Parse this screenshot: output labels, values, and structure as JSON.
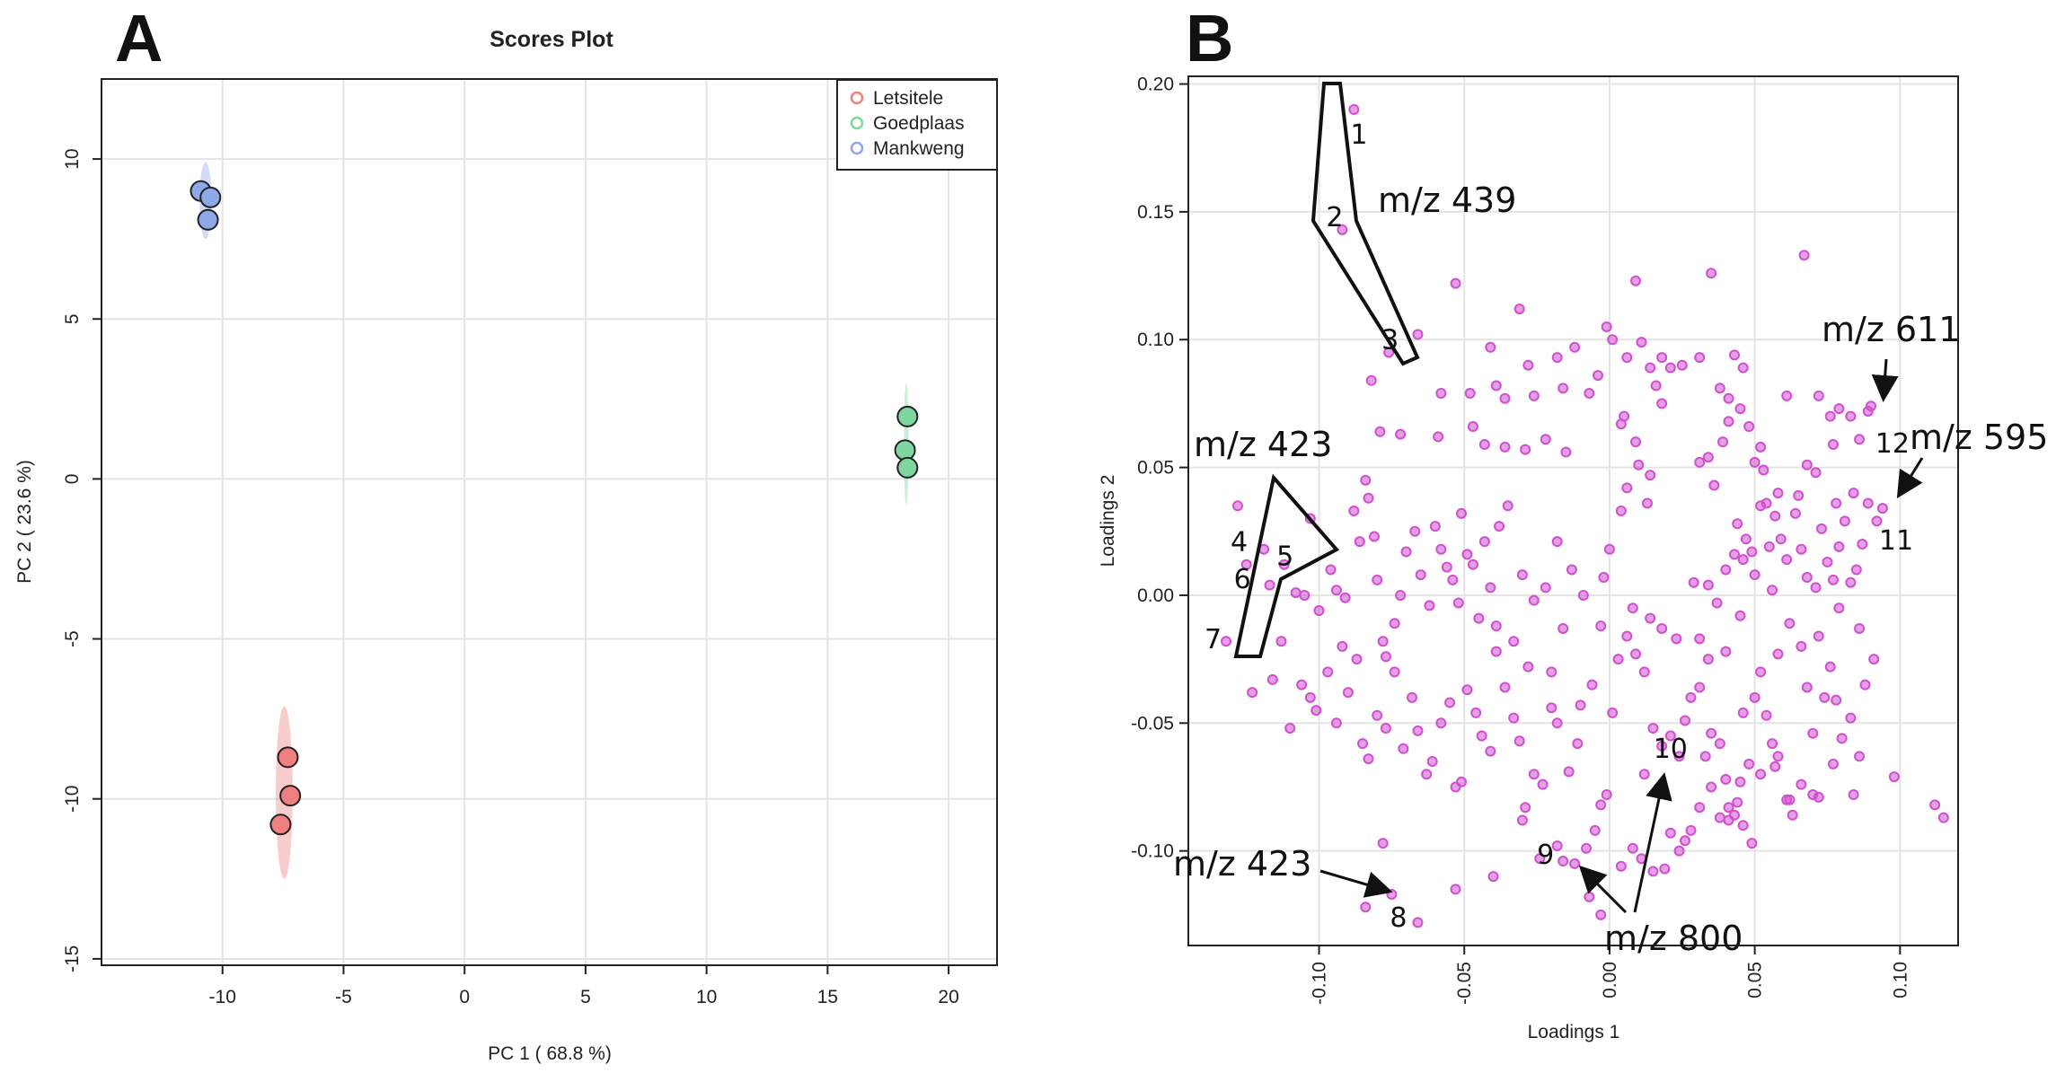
{
  "panel_letters": {
    "a": "A",
    "b": "B"
  },
  "chart_data": [
    {
      "type": "scatter",
      "title": "Scores Plot",
      "xlabel": "PC 1 ( 68.8 %)",
      "ylabel": "PC 2 ( 23.6 %)",
      "xlim": [
        -15,
        22
      ],
      "ylim": [
        -15.2,
        12.5
      ],
      "xticks": [
        -10,
        -5,
        0,
        5,
        10,
        15,
        20
      ],
      "yticks": [
        -15,
        -10,
        -5,
        0,
        5,
        10
      ],
      "grid": true,
      "legend_position": "top-right",
      "series": [
        {
          "name": "Letsitele",
          "color": "#f08080",
          "x": [
            -7.3,
            -7.2,
            -7.6
          ],
          "y": [
            -8.7,
            -9.9,
            -10.8
          ],
          "ellipse": {
            "cx": -7.45,
            "cy": -9.8,
            "rx": 0.35,
            "ry": 2.7
          }
        },
        {
          "name": "Goedplaas",
          "color": "#7fd6a0",
          "x": [
            18.3,
            18.2,
            18.3
          ],
          "y": [
            1.95,
            0.9,
            0.35
          ],
          "ellipse": {
            "cx": 18.25,
            "cy": 1.1,
            "rx": 0.1,
            "ry": 1.9
          }
        },
        {
          "name": "Mankweng",
          "color": "#8fa8e8",
          "x": [
            -10.9,
            -10.5,
            -10.6
          ],
          "y": [
            9.0,
            8.8,
            8.1
          ],
          "ellipse": {
            "cx": -10.7,
            "cy": 8.7,
            "rx": 0.25,
            "ry": 1.2
          }
        }
      ]
    },
    {
      "type": "scatter",
      "xlabel": "Loadings 1",
      "ylabel": "Loadings 2",
      "xlim": [
        -0.145,
        0.12
      ],
      "ylim": [
        -0.137,
        0.203
      ],
      "xticks": [
        -0.1,
        -0.05,
        0.0,
        0.05,
        0.1
      ],
      "xtick_labels": [
        "-0.10",
        "-0.05",
        "0.00",
        "0.05",
        "0.10"
      ],
      "yticks": [
        -0.1,
        -0.05,
        0.0,
        0.05,
        0.1,
        0.15,
        0.2
      ],
      "ytick_labels": [
        "-0.10",
        "-0.05",
        "0.00",
        "0.05",
        "0.10",
        "0.15",
        "0.20"
      ],
      "grid": true,
      "point_color": "#d050d0",
      "labeled_points": [
        {
          "label": "1",
          "x": -0.088,
          "y": 0.19
        },
        {
          "label": "2",
          "x": -0.092,
          "y": 0.143
        },
        {
          "label": "3",
          "x": -0.076,
          "y": 0.095
        },
        {
          "label": "4",
          "x": -0.128,
          "y": 0.035
        },
        {
          "label": "5",
          "x": -0.119,
          "y": 0.018
        },
        {
          "label": "6",
          "x": -0.125,
          "y": 0.012
        },
        {
          "label": "7",
          "x": -0.132,
          "y": -0.018
        },
        {
          "label": "8",
          "x": -0.075,
          "y": -0.117
        },
        {
          "label": "9",
          "x": -0.012,
          "y": -0.105
        },
        {
          "label": "10",
          "x": 0.012,
          "y": -0.07
        },
        {
          "label": "11",
          "x": 0.094,
          "y": 0.034
        },
        {
          "label": "12",
          "x": 0.089,
          "y": 0.072
        }
      ],
      "annotations": [
        {
          "text": "m/z 439"
        },
        {
          "text": "m/z 423"
        },
        {
          "text": "m/z 611"
        },
        {
          "text": "m/z 595"
        },
        {
          "text": "m/z 423"
        },
        {
          "text": "m/z 800"
        }
      ],
      "points": [
        [
          -0.082,
          0.084
        ],
        [
          -0.079,
          0.064
        ],
        [
          -0.072,
          0.063
        ],
        [
          -0.066,
          0.102
        ],
        [
          -0.053,
          0.122
        ],
        [
          -0.048,
          0.079
        ],
        [
          -0.041,
          0.097
        ],
        [
          -0.039,
          0.082
        ],
        [
          -0.036,
          0.077
        ],
        [
          -0.031,
          0.112
        ],
        [
          -0.028,
          0.09
        ],
        [
          -0.026,
          0.078
        ],
        [
          -0.022,
          0.061
        ],
        [
          -0.018,
          0.093
        ],
        [
          -0.016,
          0.081
        ],
        [
          -0.012,
          0.097
        ],
        [
          -0.007,
          0.079
        ],
        [
          -0.004,
          0.086
        ],
        [
          -0.058,
          0.079
        ],
        [
          -0.059,
          0.062
        ],
        [
          -0.047,
          0.066
        ],
        [
          -0.043,
          0.059
        ],
        [
          -0.036,
          0.058
        ],
        [
          -0.029,
          0.057
        ],
        [
          -0.015,
          0.056
        ],
        [
          -0.001,
          0.105
        ],
        [
          0.001,
          0.1
        ],
        [
          0.006,
          0.093
        ],
        [
          0.009,
          0.123
        ],
        [
          0.011,
          0.099
        ],
        [
          0.014,
          0.089
        ],
        [
          0.018,
          0.093
        ],
        [
          0.021,
          0.089
        ],
        [
          0.016,
          0.082
        ],
        [
          0.018,
          0.075
        ],
        [
          0.025,
          0.09
        ],
        [
          0.031,
          0.093
        ],
        [
          0.035,
          0.126
        ],
        [
          0.038,
          0.081
        ],
        [
          0.041,
          0.077
        ],
        [
          0.043,
          0.094
        ],
        [
          0.046,
          0.089
        ],
        [
          0.041,
          0.068
        ],
        [
          0.045,
          0.073
        ],
        [
          0.039,
          0.06
        ],
        [
          0.034,
          0.054
        ],
        [
          0.031,
          0.052
        ],
        [
          0.036,
          0.043
        ],
        [
          0.048,
          0.066
        ],
        [
          0.052,
          0.058
        ],
        [
          0.053,
          0.049
        ],
        [
          0.058,
          0.04
        ],
        [
          0.061,
          0.078
        ],
        [
          0.067,
          0.133
        ],
        [
          0.068,
          0.051
        ],
        [
          0.071,
          0.048
        ],
        [
          0.072,
          0.078
        ],
        [
          0.076,
          0.07
        ],
        [
          0.079,
          0.073
        ],
        [
          0.083,
          0.07
        ],
        [
          0.086,
          0.061
        ],
        [
          0.09,
          0.074
        ],
        [
          0.077,
          0.059
        ],
        [
          0.005,
          0.07
        ],
        [
          0.009,
          0.06
        ],
        [
          0.004,
          0.067
        ],
        [
          0.01,
          0.051
        ],
        [
          0.014,
          0.047
        ],
        [
          0.006,
          0.042
        ],
        [
          0.013,
          0.036
        ],
        [
          0.004,
          0.033
        ],
        [
          -0.117,
          0.004
        ],
        [
          -0.112,
          0.012
        ],
        [
          -0.108,
          0.001
        ],
        [
          -0.105,
          0.0
        ],
        [
          -0.103,
          0.03
        ],
        [
          -0.1,
          -0.006
        ],
        [
          -0.096,
          0.01
        ],
        [
          -0.094,
          0.002
        ],
        [
          -0.092,
          -0.02
        ],
        [
          -0.091,
          -0.001
        ],
        [
          -0.088,
          0.033
        ],
        [
          -0.086,
          0.021
        ],
        [
          -0.084,
          0.045
        ],
        [
          -0.083,
          0.038
        ],
        [
          -0.081,
          0.023
        ],
        [
          -0.08,
          0.006
        ],
        [
          -0.078,
          -0.018
        ],
        [
          -0.077,
          -0.024
        ],
        [
          -0.074,
          -0.011
        ],
        [
          -0.072,
          0.0
        ],
        [
          -0.07,
          0.017
        ],
        [
          -0.067,
          0.025
        ],
        [
          -0.065,
          0.008
        ],
        [
          -0.062,
          -0.004
        ],
        [
          -0.06,
          0.027
        ],
        [
          -0.058,
          0.018
        ],
        [
          -0.056,
          0.011
        ],
        [
          -0.054,
          0.006
        ],
        [
          -0.052,
          -0.003
        ],
        [
          -0.051,
          0.032
        ],
        [
          -0.049,
          0.016
        ],
        [
          -0.047,
          0.012
        ],
        [
          -0.045,
          -0.009
        ],
        [
          -0.043,
          0.021
        ],
        [
          -0.041,
          0.003
        ],
        [
          -0.039,
          -0.012
        ],
        [
          -0.038,
          0.027
        ],
        [
          -0.035,
          0.035
        ],
        [
          -0.033,
          -0.018
        ],
        [
          -0.03,
          0.008
        ],
        [
          -0.028,
          -0.028
        ],
        [
          -0.026,
          -0.002
        ],
        [
          -0.022,
          0.003
        ],
        [
          -0.02,
          -0.03
        ],
        [
          -0.018,
          0.021
        ],
        [
          -0.013,
          0.01
        ],
        [
          -0.123,
          -0.038
        ],
        [
          -0.116,
          -0.033
        ],
        [
          -0.113,
          -0.018
        ],
        [
          -0.11,
          -0.052
        ],
        [
          -0.106,
          -0.035
        ],
        [
          -0.103,
          -0.04
        ],
        [
          -0.101,
          -0.045
        ],
        [
          -0.097,
          -0.03
        ],
        [
          -0.094,
          -0.05
        ],
        [
          -0.09,
          -0.038
        ],
        [
          -0.087,
          -0.025
        ],
        [
          -0.085,
          -0.058
        ],
        [
          -0.083,
          -0.064
        ],
        [
          -0.08,
          -0.047
        ],
        [
          -0.077,
          -0.052
        ],
        [
          -0.074,
          -0.03
        ],
        [
          -0.071,
          -0.06
        ],
        [
          -0.068,
          -0.04
        ],
        [
          -0.066,
          -0.053
        ],
        [
          -0.063,
          -0.07
        ],
        [
          -0.061,
          -0.065
        ],
        [
          -0.058,
          -0.05
        ],
        [
          -0.055,
          -0.042
        ],
        [
          -0.053,
          -0.075
        ],
        [
          -0.051,
          -0.073
        ],
        [
          -0.049,
          -0.037
        ],
        [
          -0.046,
          -0.046
        ],
        [
          -0.044,
          -0.055
        ],
        [
          -0.041,
          -0.061
        ],
        [
          -0.039,
          -0.022
        ],
        [
          -0.036,
          -0.036
        ],
        [
          -0.033,
          -0.048
        ],
        [
          -0.031,
          -0.057
        ],
        [
          -0.029,
          -0.083
        ],
        [
          -0.026,
          -0.07
        ],
        [
          -0.023,
          -0.074
        ],
        [
          -0.02,
          -0.044
        ],
        [
          -0.018,
          -0.05
        ],
        [
          -0.014,
          -0.069
        ],
        [
          -0.011,
          -0.058
        ],
        [
          -0.008,
          -0.099
        ],
        [
          -0.005,
          -0.092
        ],
        [
          -0.003,
          -0.082
        ],
        [
          -0.001,
          -0.078
        ],
        [
          -0.084,
          -0.122
        ],
        [
          -0.078,
          -0.097
        ],
        [
          -0.066,
          -0.128
        ],
        [
          -0.053,
          -0.115
        ],
        [
          -0.04,
          -0.11
        ],
        [
          -0.03,
          -0.088
        ],
        [
          -0.024,
          -0.103
        ],
        [
          -0.018,
          -0.098
        ],
        [
          -0.016,
          -0.104
        ],
        [
          -0.007,
          -0.118
        ],
        [
          -0.003,
          -0.125
        ],
        [
          0.006,
          -0.016
        ],
        [
          0.009,
          -0.023
        ],
        [
          0.012,
          -0.03
        ],
        [
          0.015,
          -0.052
        ],
        [
          0.018,
          -0.059
        ],
        [
          0.021,
          -0.055
        ],
        [
          0.024,
          -0.063
        ],
        [
          0.026,
          -0.049
        ],
        [
          0.028,
          -0.04
        ],
        [
          0.031,
          -0.036
        ],
        [
          0.033,
          -0.063
        ],
        [
          0.035,
          -0.054
        ],
        [
          0.038,
          -0.058
        ],
        [
          0.04,
          -0.072
        ],
        [
          0.041,
          -0.083
        ],
        [
          0.043,
          -0.086
        ],
        [
          0.045,
          -0.073
        ],
        [
          0.046,
          -0.046
        ],
        [
          0.048,
          -0.066
        ],
        [
          0.05,
          -0.04
        ],
        [
          0.052,
          -0.03
        ],
        [
          0.054,
          -0.047
        ],
        [
          0.056,
          -0.058
        ],
        [
          0.058,
          -0.063
        ],
        [
          0.061,
          -0.08
        ],
        [
          0.063,
          -0.086
        ],
        [
          0.066,
          -0.074
        ],
        [
          0.068,
          -0.036
        ],
        [
          0.07,
          -0.054
        ],
        [
          0.072,
          -0.079
        ],
        [
          0.074,
          -0.04
        ],
        [
          0.076,
          -0.028
        ],
        [
          0.078,
          -0.041
        ],
        [
          0.08,
          -0.056
        ],
        [
          0.083,
          -0.048
        ],
        [
          0.086,
          -0.063
        ],
        [
          0.088,
          -0.035
        ],
        [
          0.091,
          -0.025
        ],
        [
          0.019,
          -0.107
        ],
        [
          0.021,
          -0.093
        ],
        [
          0.024,
          -0.1
        ],
        [
          0.026,
          -0.096
        ],
        [
          0.028,
          -0.092
        ],
        [
          0.031,
          -0.083
        ],
        [
          0.035,
          -0.075
        ],
        [
          0.038,
          -0.087
        ],
        [
          0.041,
          -0.088
        ],
        [
          0.044,
          -0.081
        ],
        [
          0.046,
          -0.09
        ],
        [
          0.049,
          -0.097
        ],
        [
          0.052,
          -0.07
        ],
        [
          0.057,
          -0.067
        ],
        [
          0.062,
          -0.08
        ],
        [
          0.07,
          -0.078
        ],
        [
          0.077,
          -0.066
        ],
        [
          0.084,
          -0.078
        ],
        [
          0.098,
          -0.071
        ],
        [
          0.112,
          -0.082
        ],
        [
          0.115,
          -0.087
        ],
        [
          0.008,
          -0.099
        ],
        [
          0.004,
          -0.106
        ],
        [
          0.011,
          -0.103
        ],
        [
          0.015,
          -0.108
        ],
        [
          0.014,
          -0.009
        ],
        [
          0.018,
          -0.013
        ],
        [
          0.023,
          -0.017
        ],
        [
          0.029,
          0.005
        ],
        [
          0.031,
          -0.017
        ],
        [
          0.034,
          0.004
        ],
        [
          0.037,
          -0.003
        ],
        [
          0.04,
          0.01
        ],
        [
          0.043,
          0.016
        ],
        [
          0.046,
          0.014
        ],
        [
          0.049,
          0.017
        ],
        [
          0.05,
          0.052
        ],
        [
          0.052,
          0.035
        ],
        [
          0.055,
          0.019
        ],
        [
          0.057,
          0.031
        ],
        [
          0.059,
          0.022
        ],
        [
          0.061,
          0.014
        ],
        [
          0.064,
          0.032
        ],
        [
          0.066,
          0.018
        ],
        [
          0.068,
          0.007
        ],
        [
          0.071,
          0.003
        ],
        [
          0.073,
          0.026
        ],
        [
          0.075,
          0.013
        ],
        [
          0.077,
          0.006
        ],
        [
          0.079,
          0.019
        ],
        [
          0.081,
          0.029
        ],
        [
          0.083,
          0.005
        ],
        [
          0.085,
          0.01
        ],
        [
          0.087,
          0.02
        ],
        [
          0.089,
          0.036
        ],
        [
          0.092,
          0.029
        ],
        [
          0.084,
          0.04
        ],
        [
          0.078,
          0.036
        ],
        [
          0.065,
          0.039
        ],
        [
          0.054,
          0.036
        ],
        [
          0.047,
          0.022
        ],
        [
          0.044,
          0.028
        ],
        [
          0.05,
          0.008
        ],
        [
          0.056,
          0.002
        ],
        [
          0.062,
          -0.011
        ],
        [
          0.066,
          -0.02
        ],
        [
          0.072,
          -0.016
        ],
        [
          0.079,
          -0.005
        ],
        [
          0.086,
          -0.013
        ],
        [
          0.058,
          -0.023
        ],
        [
          0.045,
          -0.008
        ],
        [
          0.04,
          -0.022
        ],
        [
          0.034,
          -0.025
        ],
        [
          -0.009,
          0.0
        ],
        [
          -0.003,
          -0.012
        ],
        [
          -0.006,
          -0.035
        ],
        [
          0.001,
          -0.046
        ],
        [
          -0.01,
          -0.043
        ],
        [
          0.0,
          0.018
        ],
        [
          0.003,
          -0.025
        ],
        [
          -0.016,
          -0.013
        ],
        [
          0.008,
          -0.005
        ],
        [
          -0.002,
          0.007
        ]
      ]
    }
  ]
}
